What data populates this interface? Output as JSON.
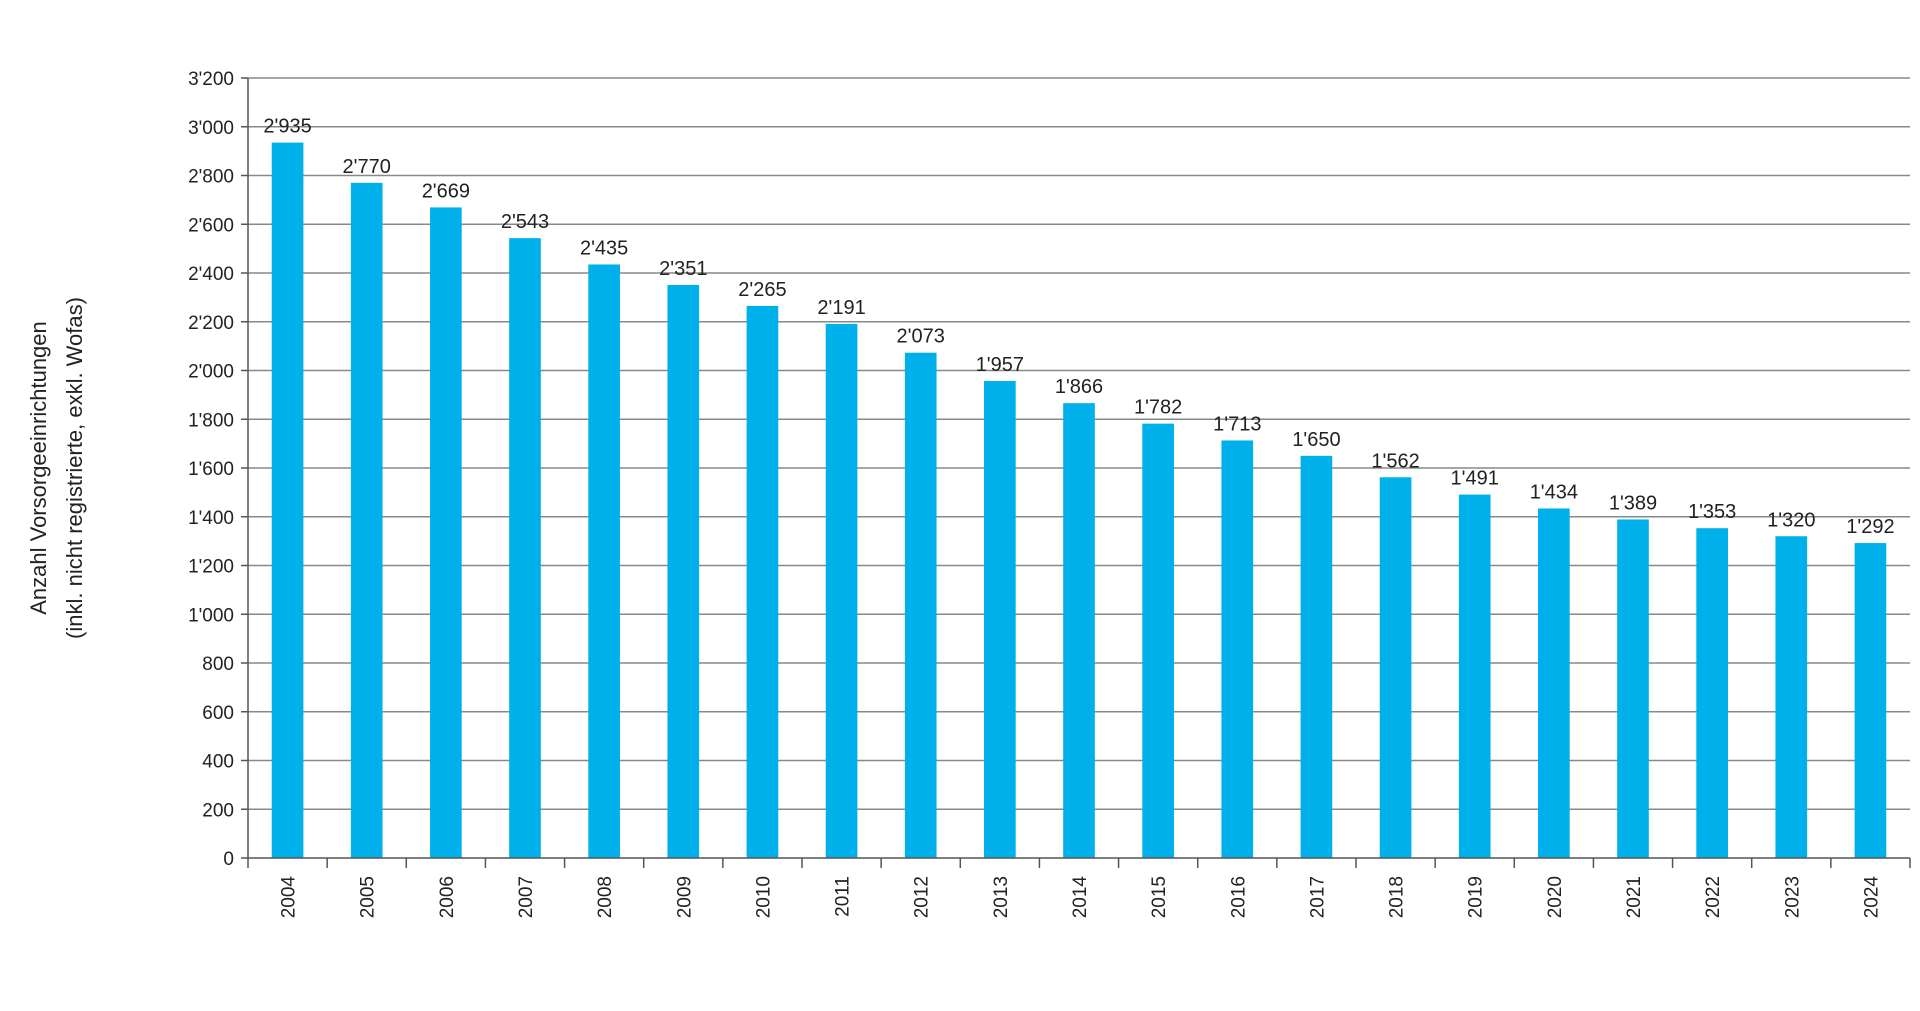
{
  "chart_data": {
    "type": "bar",
    "title": "",
    "xlabel": "",
    "ylabel_lines": [
      "Anzahl Vorsorgeeinrichtungen",
      "(inkl. nicht registrierte, exkl. Wofas)"
    ],
    "categories": [
      "2004",
      "2005",
      "2006",
      "2007",
      "2008",
      "2009",
      "2010",
      "2011",
      "2012",
      "2013",
      "2014",
      "2015",
      "2016",
      "2017",
      "2018",
      "2019",
      "2020",
      "2021",
      "2022",
      "2023",
      "2024"
    ],
    "values": [
      2935,
      2770,
      2669,
      2543,
      2435,
      2351,
      2265,
      2191,
      2073,
      1957,
      1866,
      1782,
      1713,
      1650,
      1562,
      1491,
      1434,
      1389,
      1353,
      1320,
      1292
    ],
    "value_labels": [
      "2'935",
      "2'770",
      "2'669",
      "2'543",
      "2'435",
      "2'351",
      "2'265",
      "2'191",
      "2'073",
      "1'957",
      "1'866",
      "1'782",
      "1'713",
      "1'650",
      "1'562",
      "1'491",
      "1'434",
      "1'389",
      "1'353",
      "1'320",
      "1'292"
    ],
    "ylim": [
      0,
      3200
    ],
    "yticks": [
      0,
      200,
      400,
      600,
      800,
      1000,
      1200,
      1400,
      1600,
      1800,
      2000,
      2200,
      2400,
      2600,
      2800,
      3000,
      3200
    ],
    "ytick_labels": [
      "0",
      "200",
      "400",
      "600",
      "800",
      "1'000",
      "1'200",
      "1'400",
      "1'600",
      "1'800",
      "2'000",
      "2'200",
      "2'400",
      "2'600",
      "2'800",
      "3'000",
      "3'200"
    ],
    "grid": true,
    "legend": "none",
    "colors": {
      "bar": "#00b0eb",
      "grid": "#888888",
      "axis": "#555555"
    }
  }
}
